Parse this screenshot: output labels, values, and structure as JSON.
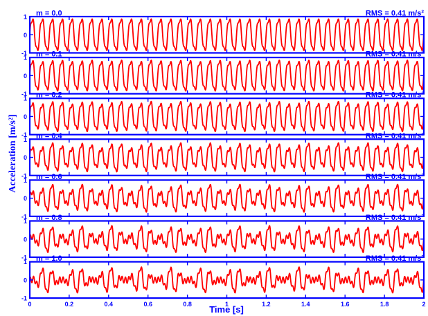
{
  "chart_data": {
    "type": "line",
    "layout": "stacked-subplots",
    "xlabel": "Time [s]",
    "ylabel": "Acceleration [m/s²]",
    "xlim": [
      0,
      2
    ],
    "ylim": [
      -1,
      1
    ],
    "x_ticks": [
      "0",
      "0.2",
      "0.4",
      "0.6",
      "0.8",
      "1",
      "1.2",
      "1.4",
      "1.6",
      "1.8",
      "2"
    ],
    "y_ticks": [
      "-1",
      "0",
      "1"
    ],
    "base_frequency_hz": 20,
    "grid": false,
    "colors": {
      "signal": "#ff0000",
      "axes": "#0000ff",
      "label": "#0000ff"
    },
    "panels": [
      {
        "label": "m = 0.0",
        "m": 0.0,
        "rms": "RMS = 0.41 m/s²"
      },
      {
        "label": "m = 0.1",
        "m": 0.1,
        "rms": "RMS = 0.41 m/s²"
      },
      {
        "label": "m = 0.2",
        "m": 0.2,
        "rms": "RMS = 0.41 m/s²"
      },
      {
        "label": "m = 0.4",
        "m": 0.4,
        "rms": "RMS = 0.41 m/s²"
      },
      {
        "label": "m = 0.6",
        "m": 0.6,
        "rms": "RMS = 0.41 m/s²"
      },
      {
        "label": "m = 0.8",
        "m": 0.8,
        "rms": "RMS = 0.41 m/s²"
      },
      {
        "label": "m = 1.0",
        "m": 1.0,
        "rms": "RMS = 0.41 m/s²"
      }
    ]
  }
}
